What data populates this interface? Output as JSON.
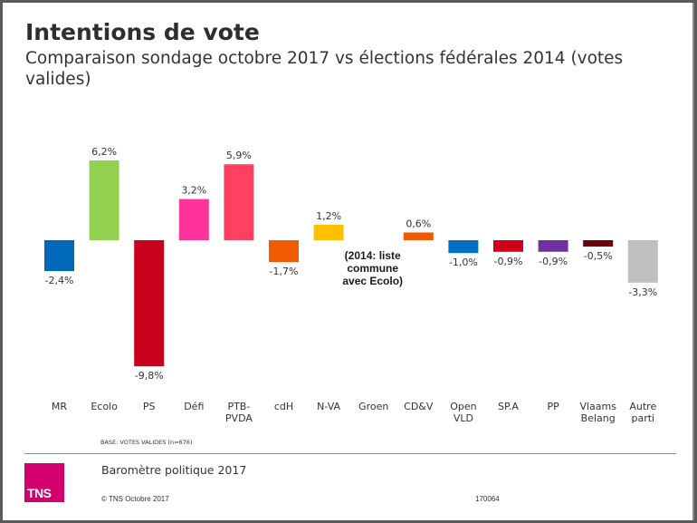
{
  "header": {
    "title": "Intentions de vote",
    "subtitle": "Comparaison sondage octobre 2017 vs élections fédérales 2014 (votes valides)"
  },
  "chart_data": {
    "type": "bar",
    "title": "Intentions de vote",
    "subtitle": "Comparaison sondage octobre 2017 vs élections fédérales 2014 (votes valides)",
    "xlabel": "",
    "ylabel": "",
    "unit": "%",
    "grid": false,
    "legend": "none",
    "ylim": [
      -10,
      6.5
    ],
    "categories": [
      "MR",
      "Ecolo",
      "PS",
      "Défi",
      "PTB-PVDA",
      "cdH",
      "N-VA",
      "Groen",
      "CD&V",
      "Open VLD",
      "SP.A",
      "PP",
      "Vlaams Belang",
      "Autre parti"
    ],
    "category_lines": [
      [
        "MR"
      ],
      [
        "Ecolo"
      ],
      [
        "PS"
      ],
      [
        "Défi"
      ],
      [
        "PTB-",
        "PVDA"
      ],
      [
        "cdH"
      ],
      [
        "N-VA"
      ],
      [
        "Groen"
      ],
      [
        "CD&V"
      ],
      [
        "Open",
        "VLD"
      ],
      [
        "SP.A"
      ],
      [
        "PP"
      ],
      [
        "Vlaams",
        "Belang"
      ],
      [
        "Autre",
        "parti"
      ]
    ],
    "values": [
      -2.4,
      6.2,
      -9.8,
      3.2,
      5.9,
      -1.7,
      1.2,
      null,
      0.6,
      -1.0,
      -0.9,
      -0.9,
      -0.5,
      -3.3
    ],
    "labels": [
      "-2,4%",
      "6,2%",
      "-9,8%",
      "3,2%",
      "5,9%",
      "-1,7%",
      "1,2%",
      "",
      "0,6%",
      "-1,0%",
      "-0,9%",
      "-0,9%",
      "-0,5%",
      "-3,3%"
    ],
    "colors": [
      "#0068b8",
      "#92d050",
      "#c8001e",
      "#ff3399",
      "#ff4060",
      "#f05a00",
      "#ffc000",
      "#ffffff",
      "#f05a00",
      "#0070c0",
      "#d0001a",
      "#7030a0",
      "#6a0010",
      "#bfbfbf"
    ],
    "annotations": [
      {
        "category": "Groen",
        "lines": [
          "(2014: liste",
          "commune",
          "avec Ecolo)"
        ]
      }
    ]
  },
  "notes": {
    "base": "BASE: VOTES VALIDES (n=676)"
  },
  "footer": {
    "logo_text": "TNS",
    "title": "Baromètre politique 2017",
    "copyright": "© TNS Octobre 2017",
    "code": "170064"
  }
}
